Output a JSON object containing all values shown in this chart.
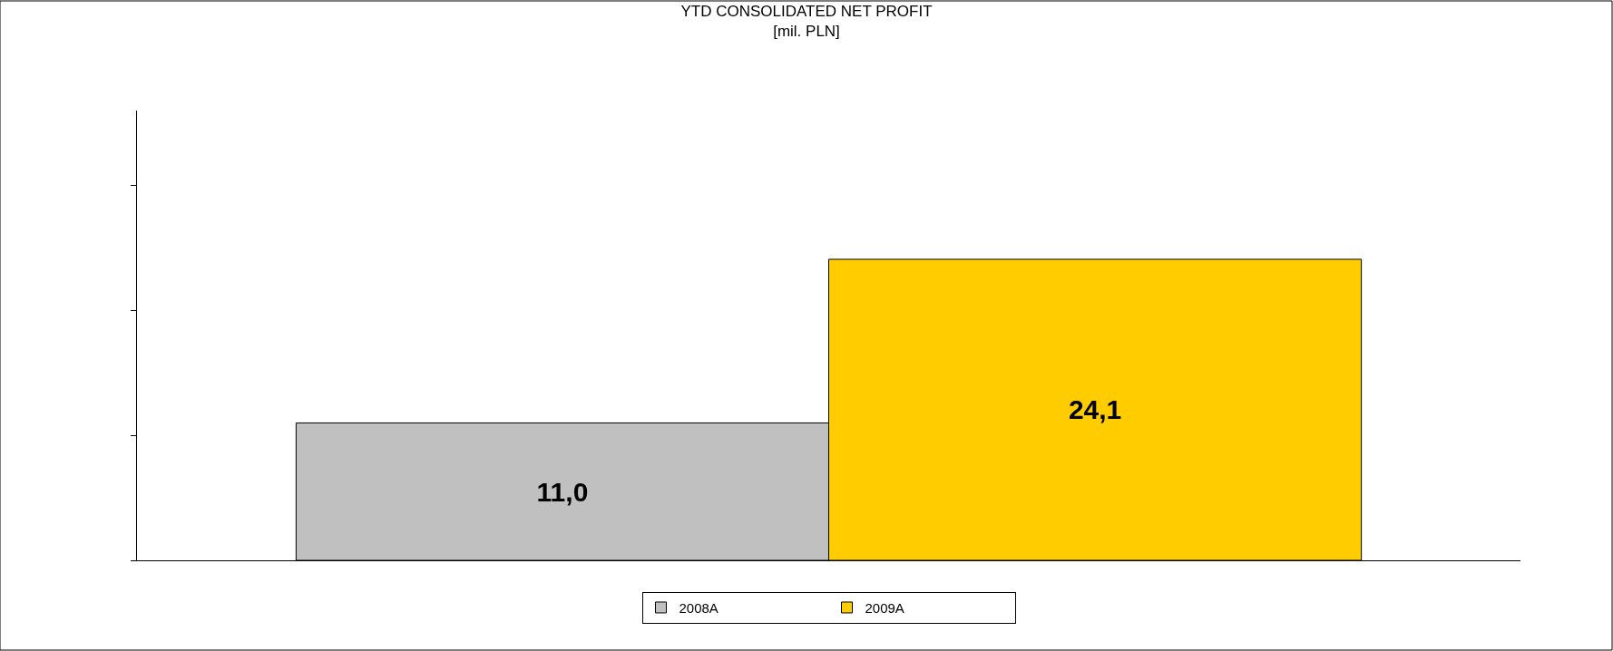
{
  "chart_data": {
    "type": "bar",
    "title": "YTD CONSOLIDATED NET PROFIT",
    "subtitle": "[mil. PLN]",
    "categories": [
      null
    ],
    "series": [
      {
        "name": "2008A",
        "color": "#c0c0c0",
        "values": [
          11.0
        ],
        "value_labels": [
          "11,0"
        ]
      },
      {
        "name": "2009A",
        "color": "#ffcc00",
        "values": [
          24.1
        ],
        "value_labels": [
          "24,1"
        ]
      }
    ],
    "ylim": [
      0,
      36
    ],
    "yticks": [
      {
        "value": 0,
        "label": null
      },
      {
        "value": 10,
        "label": null
      },
      {
        "value": 20,
        "label": null
      },
      {
        "value": 30,
        "label": null
      }
    ],
    "grid": false,
    "legend": "bottom"
  }
}
